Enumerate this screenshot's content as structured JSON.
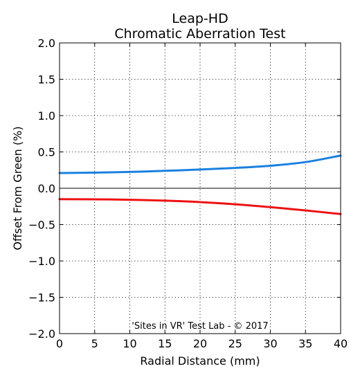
{
  "chart_data": {
    "type": "line",
    "title": [
      "Leap-HD",
      "Chromatic Aberration Test"
    ],
    "xlabel": "Radial Distance (mm)",
    "ylabel": "Offset From Green (%)",
    "xlim": [
      0,
      40
    ],
    "ylim": [
      -2.0,
      2.0
    ],
    "xticks": [
      0,
      5,
      10,
      15,
      20,
      25,
      30,
      35,
      40
    ],
    "xtick_labels": [
      "0",
      "5",
      "10",
      "15",
      "20",
      "25",
      "30",
      "35",
      "40"
    ],
    "yticks": [
      2.0,
      1.5,
      1.0,
      0.5,
      0.0,
      -0.5,
      -1.0,
      -1.5,
      -2.0
    ],
    "ytick_labels": [
      "2.0",
      "1.5",
      "1.0",
      "0.5",
      "0.0",
      "−0.5",
      "−1.0",
      "−1.5",
      "−2.0"
    ],
    "grid": true,
    "zero_line": true,
    "annotation": "'Sites in VR' Test Lab - © 2017",
    "series": [
      {
        "color": "#1a80e0",
        "x": [
          0,
          5,
          10,
          15,
          20,
          25,
          30,
          35,
          40
        ],
        "y": [
          0.21,
          0.215,
          0.225,
          0.24,
          0.258,
          0.28,
          0.31,
          0.36,
          0.45
        ]
      },
      {
        "color": "#ee1111",
        "x": [
          0,
          5,
          10,
          15,
          20,
          25,
          30,
          35,
          40
        ],
        "y": [
          -0.15,
          -0.152,
          -0.158,
          -0.17,
          -0.19,
          -0.22,
          -0.26,
          -0.305,
          -0.355
        ]
      }
    ]
  }
}
